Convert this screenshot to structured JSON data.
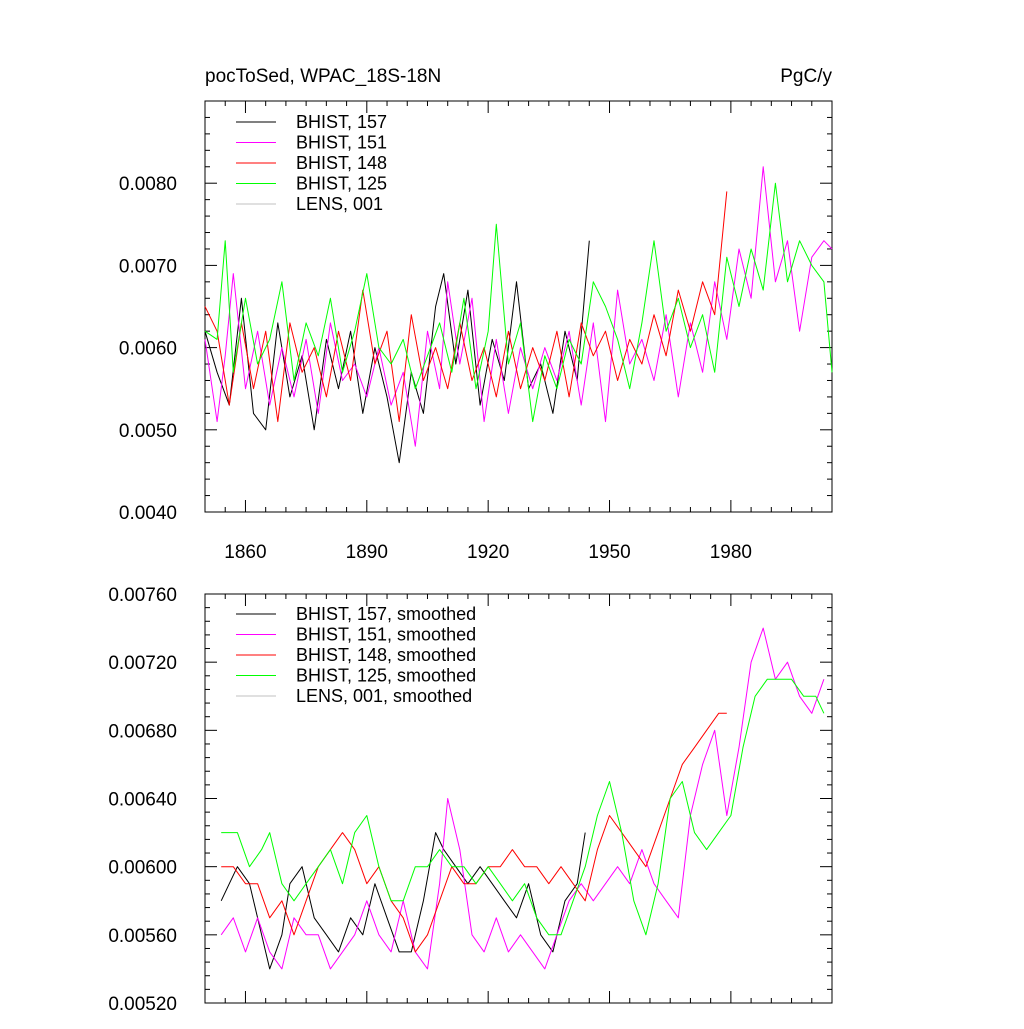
{
  "chart_data": [
    {
      "type": "line",
      "title": "pocToSed, WPAC_18S-18N",
      "units": "PgC/y",
      "xlim": [
        1850,
        2005
      ],
      "ylim": [
        0.004,
        0.009
      ],
      "xticks": [
        1860,
        1890,
        1920,
        1950,
        1980
      ],
      "xtick_labels": [
        "1860",
        "1890",
        "1920",
        "1950",
        "1980"
      ],
      "yticks": [
        0.004,
        0.005,
        0.006,
        0.007,
        0.008
      ],
      "ytick_labels": [
        "0.0040",
        "0.0050",
        "0.0060",
        "0.0070",
        "0.0080"
      ],
      "legend_position": "top-left",
      "series": [
        {
          "name": "BHIST, 157",
          "color": "#000000",
          "x": [
            1850,
            1853,
            1856,
            1859,
            1862,
            1865,
            1868,
            1871,
            1874,
            1877,
            1880,
            1883,
            1886,
            1889,
            1892,
            1895,
            1898,
            1901,
            1904,
            1907,
            1909,
            1912,
            1915,
            1918,
            1921,
            1924,
            1927,
            1930,
            1933,
            1936,
            1939,
            1942,
            1945
          ],
          "values": [
            0.0062,
            0.0057,
            0.0053,
            0.0066,
            0.0052,
            0.005,
            0.0063,
            0.0054,
            0.0059,
            0.005,
            0.0061,
            0.0055,
            0.0062,
            0.0052,
            0.006,
            0.0054,
            0.0046,
            0.0057,
            0.0052,
            0.0065,
            0.0069,
            0.0058,
            0.0067,
            0.0053,
            0.0061,
            0.0056,
            0.0068,
            0.0055,
            0.0058,
            0.0052,
            0.0062,
            0.0056,
            0.0073
          ]
        },
        {
          "name": "BHIST, 151",
          "color": "#ff00ff",
          "x": [
            1850,
            1853,
            1855,
            1857,
            1860,
            1863,
            1866,
            1869,
            1872,
            1875,
            1878,
            1881,
            1884,
            1887,
            1890,
            1893,
            1896,
            1899,
            1902,
            1905,
            1908,
            1910,
            1913,
            1916,
            1919,
            1922,
            1925,
            1928,
            1931,
            1934,
            1937,
            1940,
            1943,
            1946,
            1949,
            1952,
            1955,
            1958,
            1961,
            1964,
            1967,
            1970,
            1973,
            1976,
            1979,
            1982,
            1985,
            1988,
            1991,
            1994,
            1997,
            2000,
            2003,
            2005
          ],
          "values": [
            0.0061,
            0.0051,
            0.0059,
            0.0069,
            0.0055,
            0.0062,
            0.0053,
            0.006,
            0.0054,
            0.0061,
            0.0052,
            0.0063,
            0.0056,
            0.0058,
            0.0054,
            0.006,
            0.0053,
            0.0057,
            0.0048,
            0.0062,
            0.0055,
            0.0068,
            0.0058,
            0.0066,
            0.0051,
            0.0061,
            0.0052,
            0.006,
            0.0055,
            0.006,
            0.0056,
            0.0062,
            0.0053,
            0.0063,
            0.0051,
            0.0067,
            0.0058,
            0.0061,
            0.0056,
            0.0064,
            0.0054,
            0.0063,
            0.0057,
            0.0068,
            0.0061,
            0.0072,
            0.0066,
            0.0082,
            0.0068,
            0.0073,
            0.0062,
            0.0071,
            0.0073,
            0.0072
          ]
        },
        {
          "name": "BHIST, 148",
          "color": "#ff0000",
          "x": [
            1850,
            1853,
            1856,
            1859,
            1862,
            1865,
            1868,
            1871,
            1874,
            1877,
            1880,
            1883,
            1886,
            1889,
            1892,
            1895,
            1898,
            1901,
            1904,
            1907,
            1910,
            1913,
            1916,
            1919,
            1922,
            1925,
            1928,
            1931,
            1934,
            1937,
            1940,
            1943,
            1946,
            1949,
            1952,
            1955,
            1958,
            1961,
            1964,
            1967,
            1970,
            1973,
            1976,
            1979
          ],
          "values": [
            0.0065,
            0.0062,
            0.0053,
            0.0063,
            0.0055,
            0.0062,
            0.0051,
            0.0063,
            0.0057,
            0.006,
            0.0054,
            0.0062,
            0.0056,
            0.0067,
            0.0058,
            0.0062,
            0.0051,
            0.0064,
            0.0056,
            0.006,
            0.0055,
            0.0063,
            0.0056,
            0.006,
            0.0054,
            0.0062,
            0.0055,
            0.006,
            0.0056,
            0.0062,
            0.0054,
            0.0063,
            0.0059,
            0.0062,
            0.0056,
            0.0061,
            0.0058,
            0.0064,
            0.0059,
            0.0067,
            0.0062,
            0.0068,
            0.0064,
            0.0079
          ]
        },
        {
          "name": "BHIST, 125",
          "color": "#00ff00",
          "x": [
            1850,
            1853,
            1855,
            1857,
            1860,
            1863,
            1866,
            1869,
            1872,
            1875,
            1878,
            1881,
            1884,
            1887,
            1890,
            1893,
            1896,
            1899,
            1902,
            1905,
            1908,
            1911,
            1914,
            1917,
            1920,
            1922,
            1925,
            1928,
            1931,
            1934,
            1937,
            1940,
            1943,
            1946,
            1949,
            1952,
            1955,
            1958,
            1961,
            1964,
            1967,
            1970,
            1973,
            1976,
            1979,
            1982,
            1985,
            1988,
            1991,
            1994,
            1997,
            2000,
            2003,
            2005
          ],
          "values": [
            0.0062,
            0.0061,
            0.0073,
            0.0057,
            0.0066,
            0.0058,
            0.0061,
            0.0068,
            0.0056,
            0.0063,
            0.0059,
            0.0066,
            0.0057,
            0.0062,
            0.0069,
            0.006,
            0.0058,
            0.0061,
            0.0055,
            0.0059,
            0.0063,
            0.0057,
            0.0066,
            0.0055,
            0.0062,
            0.0075,
            0.0058,
            0.0063,
            0.0051,
            0.0059,
            0.0055,
            0.0061,
            0.0058,
            0.0068,
            0.0065,
            0.0061,
            0.0055,
            0.0063,
            0.0073,
            0.0062,
            0.0066,
            0.006,
            0.0064,
            0.0057,
            0.0071,
            0.0065,
            0.0072,
            0.0067,
            0.008,
            0.0068,
            0.0073,
            0.007,
            0.0068,
            0.0057
          ]
        },
        {
          "name": "LENS, 001",
          "color": "#c0c0c0",
          "x": [],
          "values": []
        }
      ]
    },
    {
      "type": "line",
      "title": "",
      "units": "",
      "xlim": [
        1850,
        2005
      ],
      "ylim": [
        0.0052,
        0.0076
      ],
      "xticks": [
        1860,
        1890,
        1920,
        1950,
        1980
      ],
      "yticks": [
        0.0052,
        0.0056,
        0.006,
        0.0064,
        0.0068,
        0.0072,
        0.0076
      ],
      "ytick_labels": [
        "0.00520",
        "0.00560",
        "0.00600",
        "0.00640",
        "0.00680",
        "0.00720",
        "0.00760"
      ],
      "legend_position": "top-left",
      "series": [
        {
          "name": "BHIST, 157, smoothed",
          "color": "#000000",
          "x": [
            1854,
            1856,
            1858,
            1861,
            1864,
            1866,
            1869,
            1871,
            1874,
            1877,
            1880,
            1883,
            1886,
            1889,
            1892,
            1895,
            1898,
            1901,
            1904,
            1907,
            1909,
            1912,
            1915,
            1918,
            1921,
            1924,
            1927,
            1930,
            1933,
            1936,
            1939,
            1942,
            1944
          ],
          "values": [
            0.0058,
            0.0059,
            0.006,
            0.0059,
            0.0056,
            0.0054,
            0.0056,
            0.0059,
            0.006,
            0.0057,
            0.0056,
            0.0055,
            0.0057,
            0.0056,
            0.0059,
            0.0057,
            0.0055,
            0.0055,
            0.0058,
            0.0062,
            0.0061,
            0.006,
            0.0059,
            0.006,
            0.0059,
            0.0058,
            0.0057,
            0.0059,
            0.0056,
            0.0055,
            0.0058,
            0.0059,
            0.0062
          ]
        },
        {
          "name": "BHIST, 151, smoothed",
          "color": "#ff00ff",
          "x": [
            1854,
            1857,
            1860,
            1863,
            1866,
            1869,
            1872,
            1875,
            1878,
            1881,
            1884,
            1887,
            1890,
            1893,
            1896,
            1899,
            1902,
            1905,
            1908,
            1910,
            1913,
            1916,
            1919,
            1922,
            1925,
            1928,
            1931,
            1934,
            1937,
            1940,
            1943,
            1946,
            1949,
            1952,
            1955,
            1958,
            1961,
            1964,
            1967,
            1970,
            1973,
            1976,
            1979,
            1982,
            1985,
            1988,
            1991,
            1994,
            1997,
            2000,
            2003
          ],
          "values": [
            0.0056,
            0.0057,
            0.0055,
            0.0057,
            0.0055,
            0.0054,
            0.0057,
            0.0056,
            0.0056,
            0.0054,
            0.0055,
            0.0056,
            0.0058,
            0.0056,
            0.0055,
            0.0058,
            0.0055,
            0.0054,
            0.0059,
            0.0064,
            0.0061,
            0.0056,
            0.0055,
            0.0057,
            0.0055,
            0.0056,
            0.0055,
            0.0054,
            0.0056,
            0.0058,
            0.0059,
            0.0058,
            0.0059,
            0.006,
            0.0059,
            0.0061,
            0.0059,
            0.0058,
            0.0057,
            0.0063,
            0.0066,
            0.0068,
            0.0063,
            0.0067,
            0.0072,
            0.0074,
            0.0071,
            0.0072,
            0.007,
            0.0069,
            0.0071
          ]
        },
        {
          "name": "BHIST, 148, smoothed",
          "color": "#ff0000",
          "x": [
            1854,
            1857,
            1860,
            1863,
            1866,
            1869,
            1872,
            1875,
            1878,
            1881,
            1884,
            1887,
            1890,
            1893,
            1896,
            1899,
            1902,
            1905,
            1908,
            1911,
            1914,
            1917,
            1920,
            1923,
            1926,
            1929,
            1932,
            1935,
            1938,
            1941,
            1944,
            1947,
            1950,
            1953,
            1956,
            1959,
            1962,
            1965,
            1968,
            1971,
            1974,
            1977,
            1979
          ],
          "values": [
            0.006,
            0.006,
            0.0059,
            0.0059,
            0.0057,
            0.0058,
            0.0056,
            0.0058,
            0.006,
            0.0061,
            0.0062,
            0.0061,
            0.0059,
            0.006,
            0.0058,
            0.0057,
            0.0055,
            0.0056,
            0.0058,
            0.006,
            0.0059,
            0.0059,
            0.006,
            0.006,
            0.0061,
            0.006,
            0.006,
            0.0059,
            0.006,
            0.0059,
            0.0058,
            0.0061,
            0.0063,
            0.0062,
            0.0061,
            0.006,
            0.0062,
            0.0064,
            0.0066,
            0.0067,
            0.0068,
            0.0069,
            0.0069
          ]
        },
        {
          "name": "BHIST, 125, smoothed",
          "color": "#00ff00",
          "x": [
            1854,
            1856,
            1858,
            1861,
            1864,
            1866,
            1869,
            1872,
            1875,
            1878,
            1881,
            1884,
            1887,
            1890,
            1893,
            1896,
            1899,
            1902,
            1905,
            1908,
            1911,
            1914,
            1917,
            1920,
            1923,
            1926,
            1929,
            1932,
            1935,
            1938,
            1941,
            1944,
            1947,
            1950,
            1953,
            1956,
            1959,
            1962,
            1965,
            1968,
            1971,
            1974,
            1977,
            1980,
            1983,
            1986,
            1989,
            1992,
            1995,
            1998,
            2001,
            2003
          ],
          "values": [
            0.0062,
            0.0062,
            0.0062,
            0.006,
            0.0061,
            0.0062,
            0.0059,
            0.0058,
            0.0059,
            0.006,
            0.0061,
            0.0059,
            0.0062,
            0.0063,
            0.006,
            0.0058,
            0.0058,
            0.006,
            0.006,
            0.0061,
            0.006,
            0.006,
            0.0059,
            0.006,
            0.0059,
            0.0058,
            0.0059,
            0.0057,
            0.0056,
            0.0056,
            0.0058,
            0.006,
            0.0063,
            0.0065,
            0.0062,
            0.0058,
            0.0056,
            0.0059,
            0.0064,
            0.0065,
            0.0062,
            0.0061,
            0.0062,
            0.0063,
            0.0067,
            0.007,
            0.0071,
            0.0071,
            0.0071,
            0.007,
            0.007,
            0.0069
          ]
        },
        {
          "name": "LENS, 001, smoothed",
          "color": "#c0c0c0",
          "x": [],
          "values": []
        }
      ]
    }
  ]
}
